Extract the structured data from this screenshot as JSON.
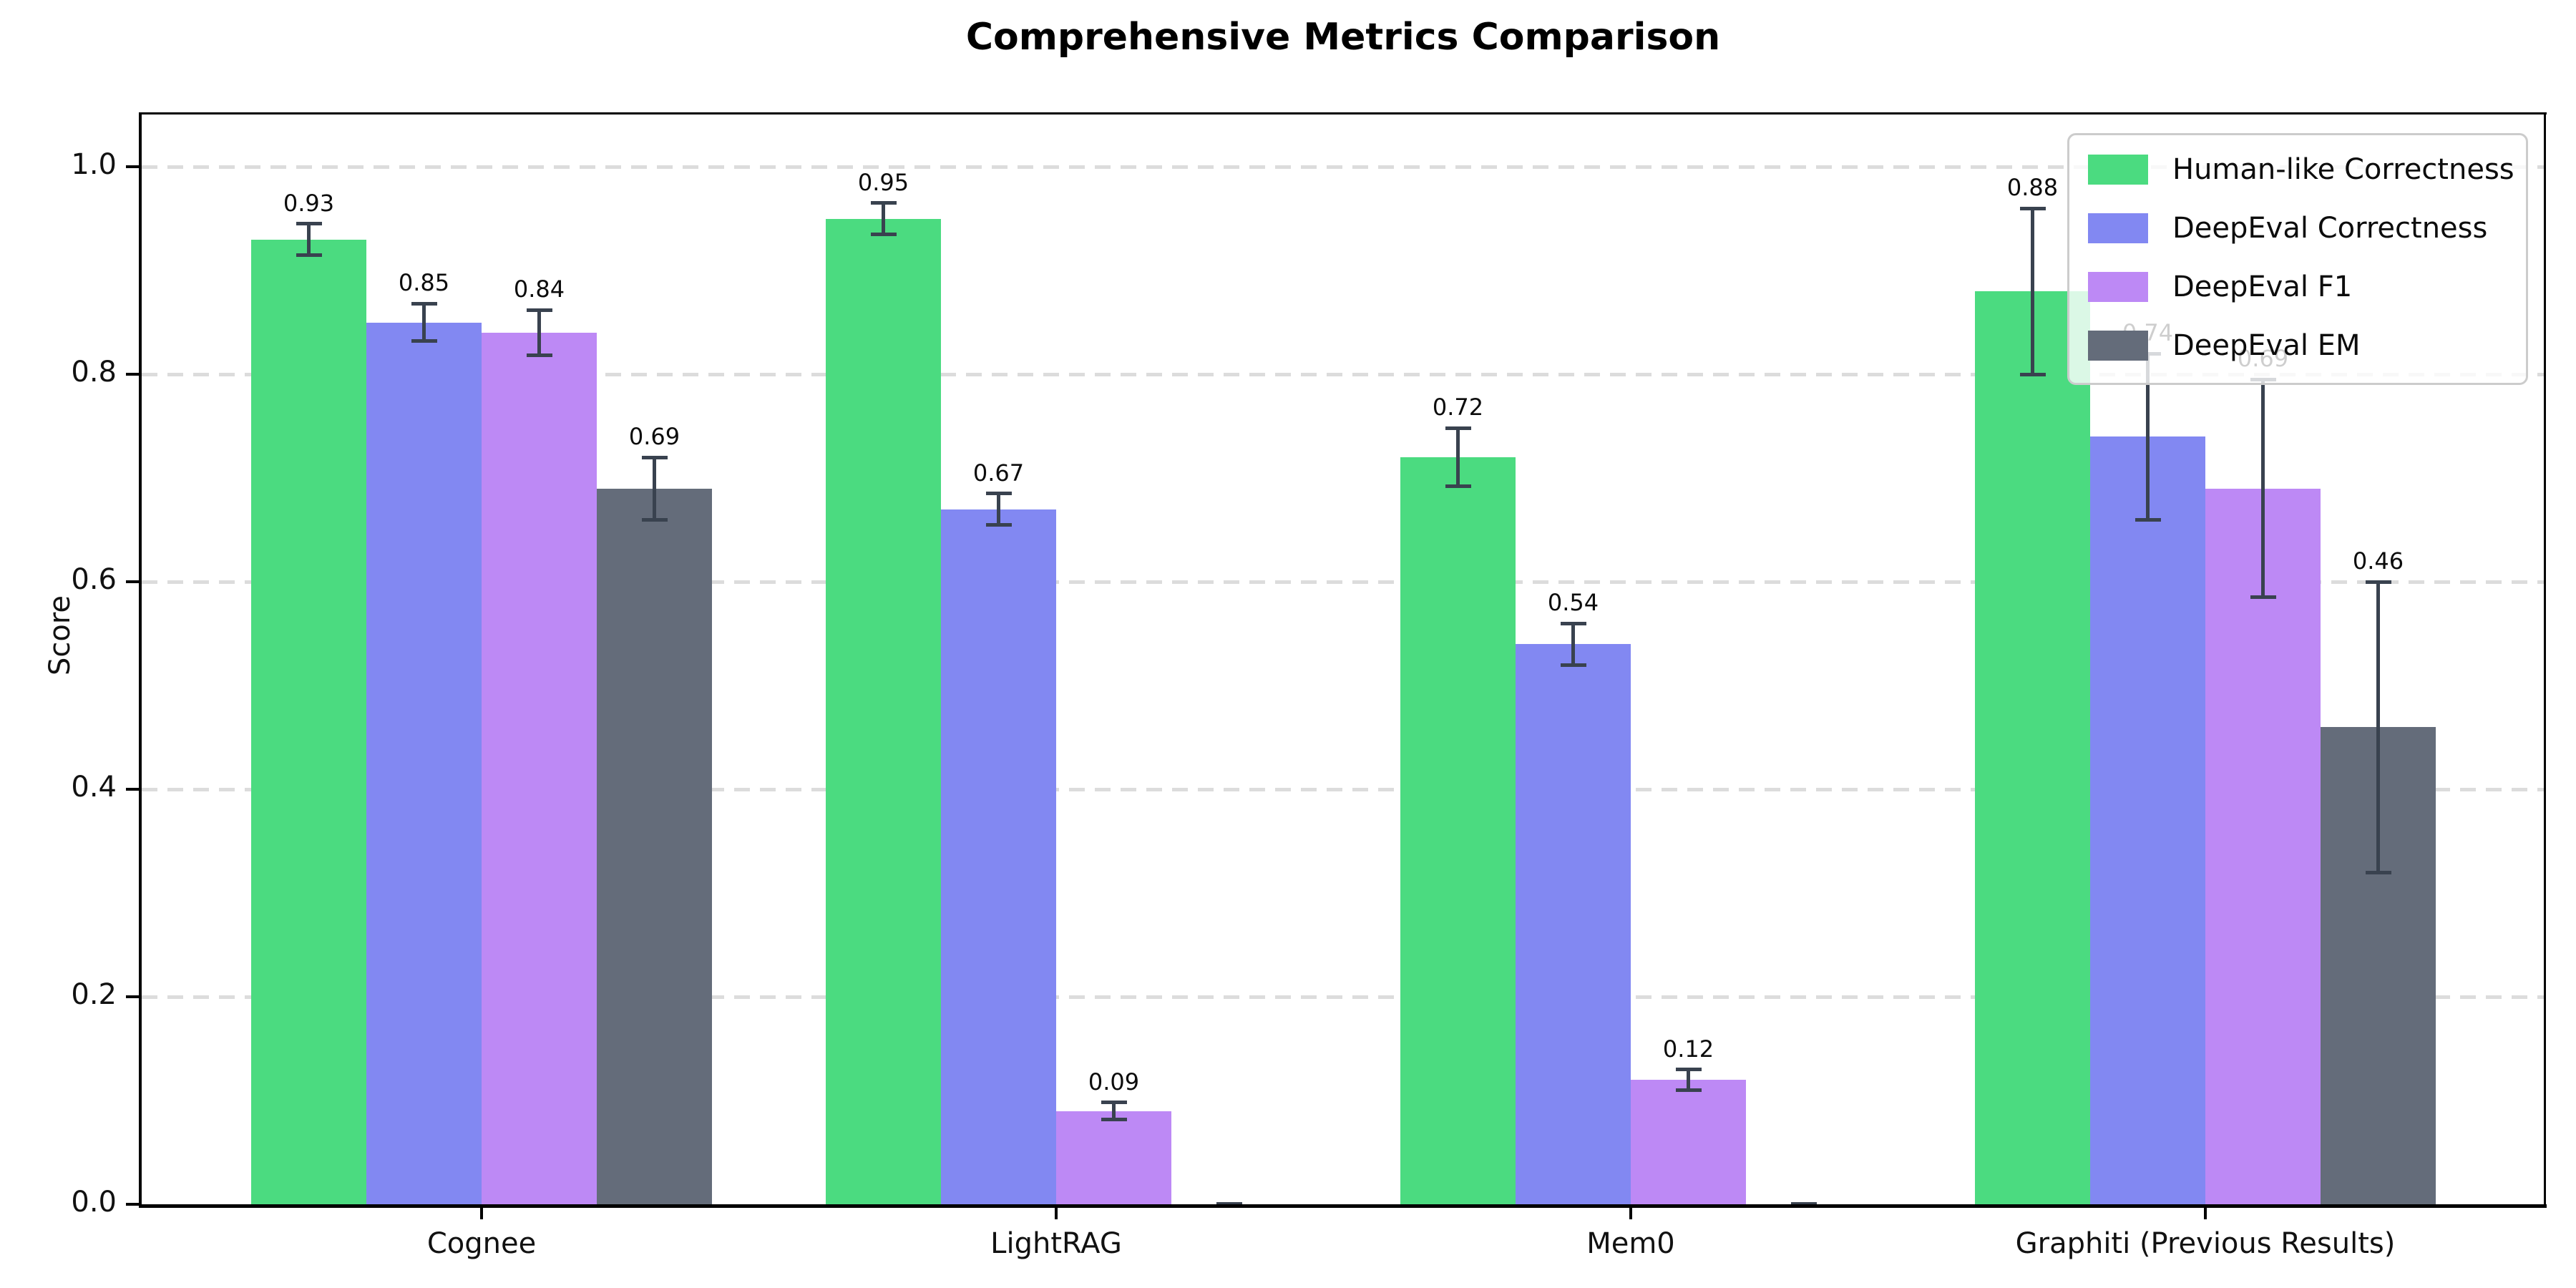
{
  "chart_data": {
    "type": "bar",
    "title": "Comprehensive Metrics Comparison",
    "ylabel": "Score",
    "xlabel": "",
    "categories": [
      "Cognee",
      "LightRAG",
      "Mem0",
      "Graphiti (Previous Results)"
    ],
    "series": [
      {
        "name": "Human-like Correctness",
        "color": "#4bdb80",
        "values": [
          0.93,
          0.95,
          0.72,
          0.88
        ],
        "errors": [
          0.015,
          0.015,
          0.028,
          0.08
        ],
        "bar_labels": [
          "0.93",
          "0.95",
          "0.72",
          "0.88"
        ]
      },
      {
        "name": "DeepEval Correctness",
        "color": "#8288f2",
        "values": [
          0.85,
          0.67,
          0.54,
          0.74
        ],
        "errors": [
          0.018,
          0.015,
          0.02,
          0.08
        ],
        "bar_labels": [
          "0.85",
          "0.67",
          "0.54",
          "0.74"
        ]
      },
      {
        "name": "DeepEval F1",
        "color": "#bd89f5",
        "values": [
          0.84,
          0.09,
          0.12,
          0.69
        ],
        "errors": [
          0.022,
          0.008,
          0.01,
          0.105
        ],
        "bar_labels": [
          "0.84",
          "0.09",
          "0.12",
          "0.69"
        ]
      },
      {
        "name": "DeepEval EM",
        "color": "#646c7a",
        "values": [
          0.69,
          0.002,
          0.002,
          0.46
        ],
        "errors": [
          0.03,
          0,
          0,
          0.14
        ],
        "bar_labels": [
          "0.69",
          "",
          "",
          "0.46"
        ]
      }
    ],
    "yticks": [
      "0.0",
      "0.2",
      "0.4",
      "0.6",
      "0.8",
      "1.0"
    ],
    "ylim": [
      0.0,
      1.05
    ],
    "grid": "horizontal-dashed",
    "grid_color": "#dcdcdc",
    "errorbar_color": "#39424f",
    "legend_position": "upper-right",
    "background_color": "#ffffff"
  }
}
